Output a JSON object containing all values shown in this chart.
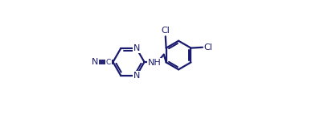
{
  "bg_color": "#ffffff",
  "line_color": "#1a1a6e",
  "figsize": [
    3.98,
    1.54
  ],
  "dpi": 100,
  "lw": 1.6,
  "fs": 8.0,
  "xlim": [
    0.0,
    1.05
  ],
  "ylim": [
    0.05,
    0.95
  ]
}
